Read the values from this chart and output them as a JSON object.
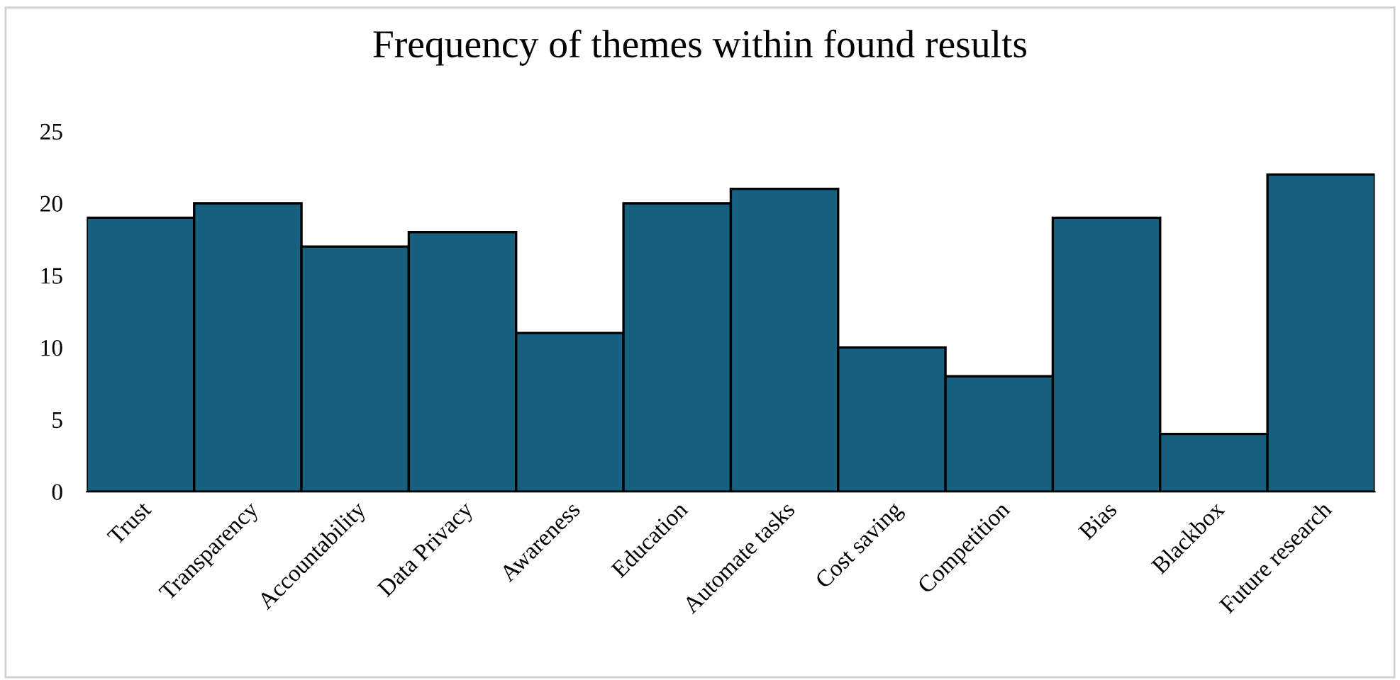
{
  "chart_data": {
    "type": "bar",
    "title": "Frequency of themes within found results",
    "categories": [
      "Trust",
      "Transparency",
      "Accountability",
      "Data Privacy",
      "Awareness",
      "Education",
      "Automate tasks",
      "Cost saving",
      "Competition",
      "Bias",
      "Blackbox",
      "Future research"
    ],
    "values": [
      19,
      20,
      17,
      18,
      11,
      20,
      21,
      10,
      8,
      19,
      4,
      22
    ],
    "color": "#17607f",
    "ylim": [
      0,
      25
    ],
    "yticks": [
      0,
      5,
      10,
      15,
      20,
      25
    ],
    "grid": false,
    "legend": false
  }
}
